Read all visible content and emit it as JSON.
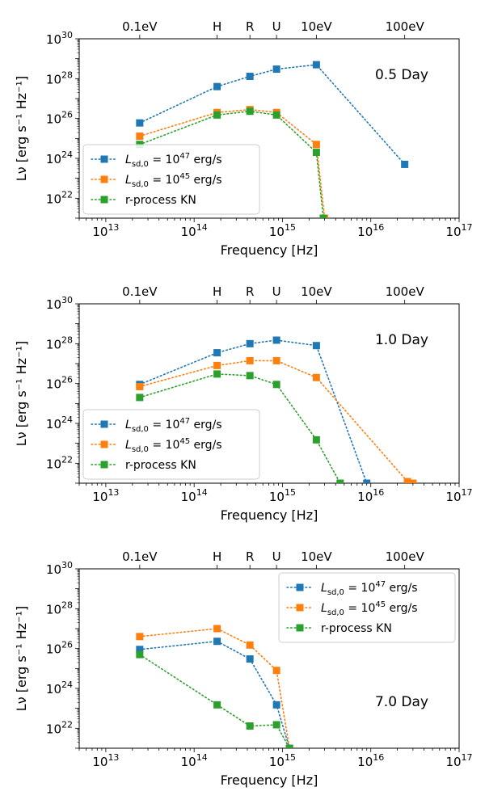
{
  "colors": {
    "series": [
      "#1f77b4",
      "#ff7f0e",
      "#2ca02c"
    ],
    "axes": "#000000",
    "legend_border": "#cccccc"
  },
  "figure": {
    "xlabel": "Frequency [Hz]",
    "ylabel": "Lν [erg s⁻¹ Hz⁻¹]",
    "x_tick_labels": [
      "10^13",
      "10^14",
      "10^15",
      "10^16",
      "10^17"
    ],
    "y_tick_labels": [
      "10^22",
      "10^24",
      "10^26",
      "10^28",
      "10^30"
    ],
    "top_tick_labels": [
      "0.1eV",
      "H",
      "R",
      "U",
      "10eV",
      "100eV"
    ],
    "legend_labels": [
      "L_sd,0 = 10^47 erg/s",
      "L_sd,0 = 10^45 erg/s",
      "r-process KN"
    ]
  },
  "chart_data": [
    {
      "type": "line",
      "panel_label": "0.5 Day",
      "x_scale": "log",
      "y_scale": "log",
      "xlim": [
        5000000000000.0,
        1e+17
      ],
      "ylim": [
        1e+21,
        1e+30
      ],
      "xlabel": "Frequency [Hz]",
      "ylabel": "Lν [erg s⁻¹ Hz⁻¹]",
      "top_axis": {
        "labels": [
          "0.1eV",
          "H",
          "R",
          "U",
          "10eV",
          "100eV"
        ],
        "positions": [
          24200000000000.0,
          182000000000000.0,
          428000000000000.0,
          857000000000000.0,
          2420000000000000.0,
          2.42e+16
        ]
      },
      "legend_position": "lower-left",
      "series": [
        {
          "name": "L_sd,0 = 10^47 erg/s",
          "x": [
            24200000000000.0,
            182000000000000.0,
            428000000000000.0,
            857000000000000.0,
            2420000000000000.0,
            2.42e+16
          ],
          "y": [
            6e+25,
            4e+27,
            1.3e+28,
            3e+28,
            5e+28,
            5e+23
          ]
        },
        {
          "name": "L_sd,0 = 10^45 erg/s",
          "x": [
            24200000000000.0,
            182000000000000.0,
            428000000000000.0,
            857000000000000.0,
            2420000000000000.0,
            3000000000000000.0
          ],
          "y": [
            1.3e+25,
            2e+26,
            2.8e+26,
            2e+26,
            5e+24,
            1e+21
          ]
        },
        {
          "name": "r-process KN",
          "x": [
            24200000000000.0,
            182000000000000.0,
            428000000000000.0,
            857000000000000.0,
            2420000000000000.0,
            2900000000000000.0
          ],
          "y": [
            5e+24,
            1.5e+26,
            2.3e+26,
            1.5e+26,
            2e+24,
            1e+21
          ]
        }
      ]
    },
    {
      "type": "line",
      "panel_label": "1.0 Day",
      "x_scale": "log",
      "y_scale": "log",
      "xlim": [
        5000000000000.0,
        1e+17
      ],
      "ylim": [
        1e+21,
        1e+30
      ],
      "xlabel": "Frequency [Hz]",
      "ylabel": "Lν [erg s⁻¹ Hz⁻¹]",
      "top_axis": {
        "labels": [
          "0.1eV",
          "H",
          "R",
          "U",
          "10eV",
          "100eV"
        ],
        "positions": [
          24200000000000.0,
          182000000000000.0,
          428000000000000.0,
          857000000000000.0,
          2420000000000000.0,
          2.42e+16
        ]
      },
      "legend_position": "lower-left",
      "series": [
        {
          "name": "L_sd,0 = 10^47 erg/s",
          "x": [
            24200000000000.0,
            182000000000000.0,
            428000000000000.0,
            857000000000000.0,
            2420000000000000.0,
            9000000000000000.0
          ],
          "y": [
            9e+25,
            3.5e+27,
            1e+28,
            1.5e+28,
            8e+27,
            1e+21
          ]
        },
        {
          "name": "L_sd,0 = 10^45 erg/s",
          "x": [
            24200000000000.0,
            182000000000000.0,
            428000000000000.0,
            857000000000000.0,
            2420000000000000.0,
            2.6e+16,
            3e+16
          ],
          "y": [
            7e+25,
            8e+26,
            1.4e+27,
            1.4e+27,
            2e+26,
            1.2e+21,
            1e+21
          ]
        },
        {
          "name": "r-process KN",
          "x": [
            24200000000000.0,
            182000000000000.0,
            428000000000000.0,
            857000000000000.0,
            2420000000000000.0,
            4500000000000000.0
          ],
          "y": [
            2e+25,
            3e+26,
            2.5e+26,
            9e+25,
            1.5e+23,
            1e+21
          ]
        }
      ]
    },
    {
      "type": "line",
      "panel_label": "7.0 Day",
      "x_scale": "log",
      "y_scale": "log",
      "xlim": [
        5000000000000.0,
        1e+17
      ],
      "ylim": [
        1e+21,
        1e+30
      ],
      "xlabel": "Frequency [Hz]",
      "ylabel": "Lν [erg s⁻¹ Hz⁻¹]",
      "top_axis": {
        "labels": [
          "0.1eV",
          "H",
          "R",
          "U",
          "10eV",
          "100eV"
        ],
        "positions": [
          24200000000000.0,
          182000000000000.0,
          428000000000000.0,
          857000000000000.0,
          2420000000000000.0,
          2.42e+16
        ]
      },
      "legend_position": "top-right",
      "series": [
        {
          "name": "L_sd,0 = 10^47 erg/s",
          "x": [
            24200000000000.0,
            182000000000000.0,
            428000000000000.0,
            857000000000000.0,
            1200000000000000.0
          ],
          "y": [
            9e+25,
            2.3e+26,
            3e+25,
            1.5e+23,
            1e+21
          ]
        },
        {
          "name": "L_sd,0 = 10^45 erg/s",
          "x": [
            24200000000000.0,
            182000000000000.0,
            428000000000000.0,
            857000000000000.0,
            1200000000000000.0
          ],
          "y": [
            4e+26,
            1e+27,
            1.5e+26,
            8e+24,
            1e+21
          ]
        },
        {
          "name": "r-process KN",
          "x": [
            24200000000000.0,
            182000000000000.0,
            428000000000000.0,
            857000000000000.0,
            1200000000000000.0
          ],
          "y": [
            5e+25,
            1.5e+23,
            1.3e+22,
            1.5e+22,
            1e+21
          ]
        }
      ]
    }
  ]
}
